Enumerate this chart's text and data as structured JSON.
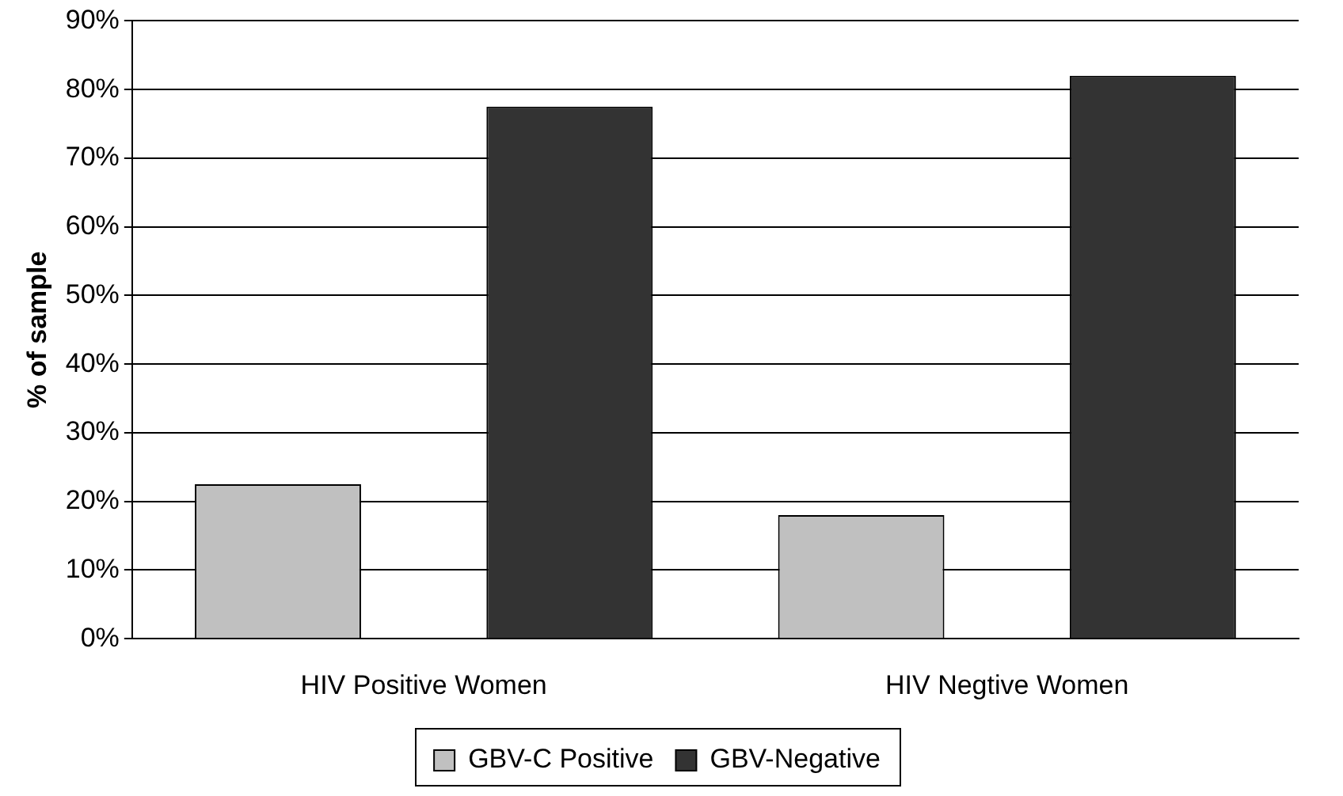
{
  "chart_data": {
    "type": "bar",
    "ylabel": "% of sample",
    "categories": [
      "HIV Positive Women",
      "HIV Negtive Women"
    ],
    "series": [
      {
        "name": "GBV-C Positive",
        "color": "#c0c0c0",
        "values": [
          22.5,
          18
        ]
      },
      {
        "name": "GBV-Negative",
        "color": "#333333",
        "values": [
          77.5,
          82
        ]
      }
    ],
    "ylim": [
      0,
      90
    ],
    "yticks": [
      {
        "value": 0,
        "label": "0%"
      },
      {
        "value": 10,
        "label": "10%"
      },
      {
        "value": 20,
        "label": "20%"
      },
      {
        "value": 30,
        "label": "30%"
      },
      {
        "value": 40,
        "label": "40%"
      },
      {
        "value": 50,
        "label": "50%"
      },
      {
        "value": 60,
        "label": "60%"
      },
      {
        "value": 70,
        "label": "70%"
      },
      {
        "value": 80,
        "label": "80%"
      },
      {
        "value": 90,
        "label": "90%"
      }
    ],
    "grid": "y",
    "legend": "bottom"
  }
}
